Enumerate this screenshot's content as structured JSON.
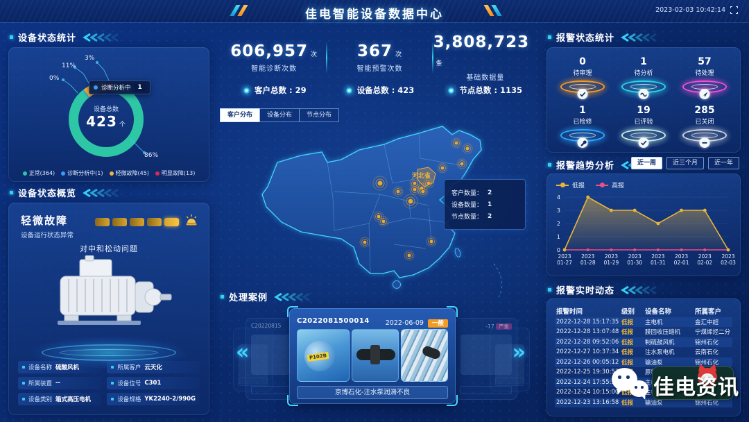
{
  "header": {
    "title": "佳电智能设备数据中心",
    "timestamp": "2023-02-03 10:42:14"
  },
  "device_status": {
    "title": "设备状态统计",
    "chart_data": {
      "type": "donut",
      "center_label": "设备总数",
      "center_value": "423",
      "center_unit": "个",
      "segments": [
        {
          "label": "正常",
          "count": 364,
          "pct": "86%",
          "color": "#2ec7a6"
        },
        {
          "label": "诊断分析中",
          "count": 1,
          "pct": "0%",
          "color": "#3a9bff"
        },
        {
          "label": "轻微故障",
          "count": 45,
          "pct": "11%",
          "color": "#f0b43c"
        },
        {
          "label": "明显故障",
          "count": 13,
          "pct": "3%",
          "color": "#d8295b"
        }
      ]
    },
    "tooltip": {
      "label": "诊断分析中",
      "value": "1"
    }
  },
  "device_overview": {
    "title": "设备状态概览",
    "status": "轻微故障",
    "status_desc": "设备运行状态异常",
    "issue": "对中和松动问题",
    "fields": [
      {
        "label": "设备名称",
        "value": "硫酸风机"
      },
      {
        "label": "所属客户",
        "value": "云天化"
      },
      {
        "label": "所属装置",
        "value": "--"
      },
      {
        "label": "设备位号",
        "value": "C301"
      },
      {
        "label": "设备类别",
        "value": "箱式高压电机"
      },
      {
        "label": "设备规格",
        "value": "YK2240-2/990G"
      }
    ]
  },
  "kpis": [
    {
      "value": "606,957",
      "unit": "次",
      "label": "智能诊断次数"
    },
    {
      "value": "367",
      "unit": "次",
      "label": "智能预警次数"
    },
    {
      "value": "3,808,723",
      "unit": "条",
      "label": "基础数据量"
    }
  ],
  "totals": [
    {
      "label": "客户总数",
      "value": "29"
    },
    {
      "label": "设备总数",
      "value": "423"
    },
    {
      "label": "节点总数",
      "value": "1135"
    }
  ],
  "map": {
    "tabs": [
      "客户分布",
      "设备分布",
      "节点分布"
    ],
    "active_tab": 0,
    "highlight_label": "河北省",
    "tooltip": {
      "rows": [
        {
          "label": "客户数量",
          "value": "2"
        },
        {
          "label": "设备数量",
          "value": "1"
        },
        {
          "label": "节点数量",
          "value": "2"
        }
      ]
    }
  },
  "cases": {
    "title": "处理案例",
    "nav_prev": "«",
    "nav_next": "»",
    "active": {
      "case_no": "C2022081500014",
      "date": "2022-06-09",
      "severity": "一般",
      "caption": "京博石化-注水泵润滑不良",
      "photo_tag": "P102B"
    },
    "ghost_left": {
      "case_no": "C20220815"
    },
    "ghost_right": {
      "date": "-17",
      "severity": "严重"
    }
  },
  "alarm_status": {
    "title": "报警状态统计",
    "items": [
      {
        "value": "0",
        "label": "待审理",
        "color": "#f59a23"
      },
      {
        "value": "1",
        "label": "待分析",
        "color": "#2fd3e8"
      },
      {
        "value": "57",
        "label": "待处理",
        "color": "#f14fd8"
      },
      {
        "value": "1",
        "label": "已检修",
        "color": "#2ea8ff"
      },
      {
        "value": "19",
        "label": "已评验",
        "color": "#bfeee8"
      },
      {
        "value": "285",
        "label": "已关闭",
        "color": "#ccd5df"
      }
    ]
  },
  "alarm_trend": {
    "title": "报警趋势分析",
    "ranges": [
      "近一周",
      "近三个月",
      "近一年"
    ],
    "active_range": 0,
    "chart_data": {
      "type": "line",
      "x_year": "2023",
      "x": [
        "01-27",
        "01-28",
        "01-29",
        "01-30",
        "01-31",
        "02-01",
        "02-02",
        "02-03"
      ],
      "ylim": [
        0,
        4
      ],
      "legend_position": "top-left",
      "series": [
        {
          "name": "低报",
          "color": "#e9b43c",
          "values": [
            0,
            4,
            3,
            3,
            2,
            3,
            3,
            0
          ]
        },
        {
          "name": "高报",
          "color": "#ee4f86",
          "values": [
            0,
            0,
            0,
            0,
            0,
            0,
            0,
            0
          ]
        }
      ]
    }
  },
  "alarm_feed": {
    "title": "报警实时动态",
    "columns": [
      "报警时间",
      "级别",
      "设备名称",
      "所属客户"
    ],
    "level_colors": {
      "低报": "#e9b43c",
      "高报": "#e84fd0"
    },
    "rows": [
      {
        "time": "2022-12-28 15:17:35",
        "level": "低报",
        "device": "主电机",
        "customer": "金汇中超"
      },
      {
        "time": "2022-12-28 13:07:48",
        "level": "低报",
        "device": "膜回收压缩机",
        "customer": "宁煤烯烃二分"
      },
      {
        "time": "2022-12-28 09:52:06",
        "level": "低报",
        "device": "制硫鼓风机",
        "customer": "锦州石化"
      },
      {
        "time": "2022-12-27 10:37:34",
        "level": "低报",
        "device": "注水泵电机",
        "customer": "云南石化"
      },
      {
        "time": "2022-12-26 00:05:12",
        "level": "低报",
        "device": "输油泵",
        "customer": "锦州石化"
      },
      {
        "time": "2022-12-25 19:30:53",
        "level": "低报",
        "device": "原料油泵",
        "customer": "锦州石化"
      },
      {
        "time": "2022-12-24 17:55:32",
        "level": "高报",
        "device": "主电机B",
        "customer": "锦州石化"
      },
      {
        "time": "2022-12-24 10:15:00",
        "level": "低报",
        "device": "主电机",
        "customer": "锦州石化"
      },
      {
        "time": "2022-12-23 13:16:58",
        "level": "低报",
        "device": "输油泵",
        "customer": "锦州石化"
      }
    ]
  },
  "watermark": {
    "text": "佳电资讯"
  }
}
